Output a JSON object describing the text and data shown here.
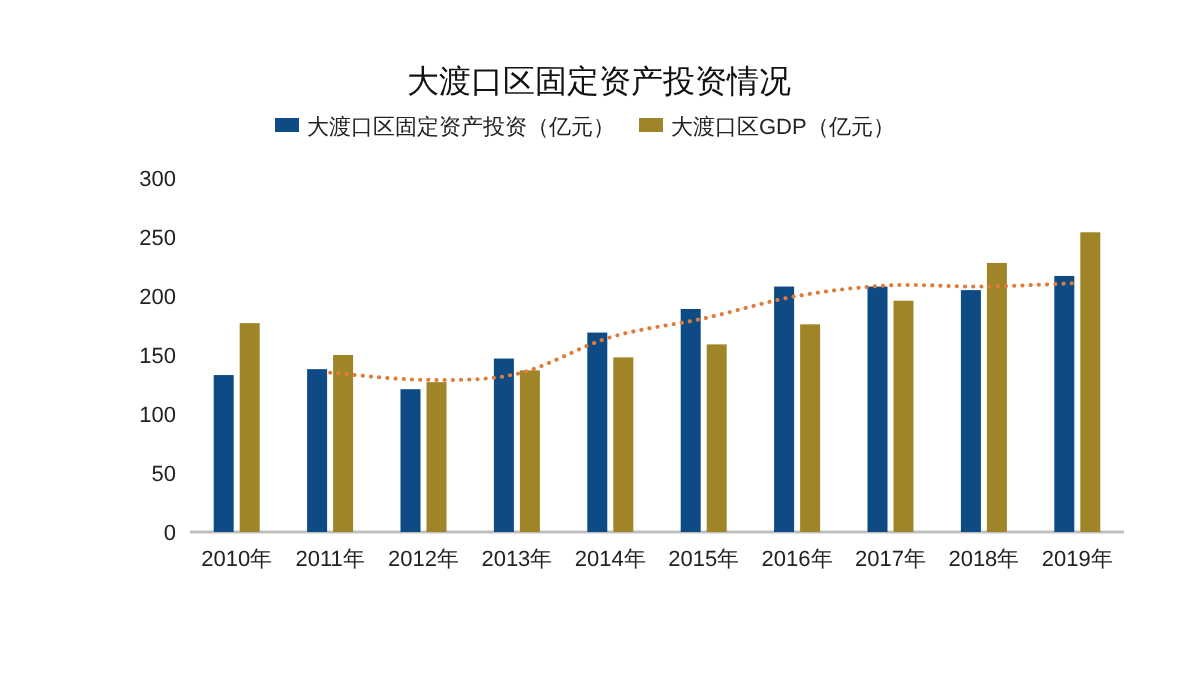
{
  "chart_data": {
    "type": "bar",
    "title": "大渡口区固定资产投资情况",
    "categories": [
      "2010年",
      "2011年",
      "2012年",
      "2013年",
      "2014年",
      "2015年",
      "2016年",
      "2017年",
      "2018年",
      "2019年"
    ],
    "series": [
      {
        "name": "大渡口区固定资产投资（亿元）",
        "color": "#0e4a84",
        "values": [
          133,
          138,
          121,
          147,
          169,
          189,
          208,
          208,
          205,
          217
        ]
      },
      {
        "name": "大渡口区GDP（亿元）",
        "color": "#a08428",
        "values": [
          177,
          150,
          127,
          137,
          148,
          159,
          176,
          196,
          228,
          254
        ]
      },
      {
        "type": "line",
        "color": "#e07b39",
        "line_style": "dotted",
        "x": [
          "2011年",
          "2012年",
          "2013年",
          "2014年",
          "2015年",
          "2016年",
          "2017年",
          "2018年",
          "2019年"
        ],
        "values": [
          135,
          129,
          134,
          165,
          181,
          200,
          209,
          208,
          211
        ]
      }
    ],
    "ylim": [
      0,
      300
    ],
    "yticks": [
      0,
      50,
      100,
      150,
      200,
      250,
      300
    ],
    "legend": "top",
    "grid": false
  }
}
